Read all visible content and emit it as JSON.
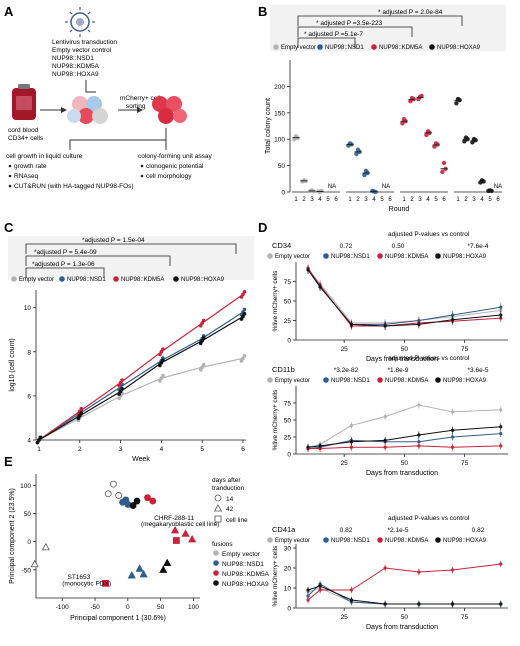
{
  "panel_letters": [
    "A",
    "B",
    "C",
    "D",
    "E"
  ],
  "colors": {
    "empty_vector": "#b3b3b3",
    "nsd1": "#2f5d8c",
    "kdm5a": "#c8233b",
    "hoxa9": "#111111",
    "box_fill": "#f2f2f2"
  },
  "panel_a": {
    "transduction_title": "Lentivirus transduction",
    "constructs": [
      "Empty vector control",
      "NUP98::NSD1",
      "NUP98::KDM5A",
      "NUP98::HOXA9"
    ],
    "source_label": [
      "cord blood",
      "CD34+ cells"
    ],
    "sorting_label": [
      "mCherry+ cell",
      "sorting"
    ],
    "liquid_title": "cell growth in liquid culture",
    "liquid_items": [
      "growth rate",
      "RNAseq",
      "CUT&RUN (with HA-tagged NUP98-FOs)"
    ],
    "cfu_title": "colony-forming unit assay",
    "cfu_items": [
      "clonogenic potential",
      "cell morphology"
    ]
  },
  "chart_data": [
    {
      "panel": "B",
      "type": "scatter",
      "ylabel": "Total colony count",
      "xlabel": "Round",
      "ylim": [
        0,
        250
      ],
      "yticks": [
        0,
        50,
        100,
        150,
        200
      ],
      "x_ticklabels": [
        "1",
        "2",
        "3",
        "4",
        "5",
        "6"
      ],
      "na_label": "NA",
      "na_rounds": {
        "Empty vector": [
          5,
          6
        ],
        "NUP98::NSD1": [
          5,
          6
        ],
        "NUP98::HOXA9": [
          6
        ]
      },
      "series": [
        {
          "name": "Empty vector",
          "rounds": [
            1,
            2,
            3,
            4
          ],
          "values": [
            [
              100,
              106,
              102
            ],
            [
              20,
              22,
              21
            ],
            [
              2,
              3,
              1
            ],
            [
              1,
              0,
              2
            ]
          ],
          "mean": [
            103,
            21,
            2,
            1
          ]
        },
        {
          "name": "NUP98::NSD1",
          "rounds": [
            1,
            2,
            3,
            4
          ],
          "values": [
            [
              88,
              92,
              90
            ],
            [
              72,
              80,
              76
            ],
            [
              32,
              40,
              36
            ],
            [
              2,
              1,
              0
            ]
          ],
          "mean": [
            90,
            76,
            36,
            1
          ]
        },
        {
          "name": "NUP98::KDM5A",
          "rounds": [
            1,
            2,
            3,
            4,
            5,
            6
          ],
          "values": [
            [
              130,
              138,
              134
            ],
            [
              172,
              178,
              176
            ],
            [
              176,
              180,
              182
            ],
            [
              108,
              115,
              112
            ],
            [
              86,
              92,
              90
            ],
            [
              38,
              55,
              44
            ]
          ],
          "mean": [
            134,
            175,
            179,
            112,
            89,
            44
          ]
        },
        {
          "name": "NUP98::HOXA9",
          "rounds": [
            1,
            2,
            3,
            4,
            5
          ],
          "values": [
            [
              168,
              176,
              174
            ],
            [
              96,
              103,
              100
            ],
            [
              94,
              100,
              98
            ],
            [
              18,
              22,
              20
            ],
            [
              2,
              3,
              2
            ]
          ],
          "mean": [
            173,
            100,
            97,
            20,
            2
          ]
        }
      ],
      "annotations": [
        "* adjusted P = 2.0e-84",
        "* adjusted P =3.5e-223",
        "* adjusted P =5.1e-7"
      ]
    },
    {
      "panel": "C",
      "type": "line",
      "ylabel": "log10 (cell count)",
      "xlabel": "Week",
      "x": [
        1,
        2,
        3,
        4,
        5,
        6
      ],
      "ylim": [
        4,
        10.8
      ],
      "yticks": [
        4,
        6,
        8,
        10
      ],
      "series": [
        {
          "name": "Empty vector",
          "values": [
            4.0,
            5.0,
            6.0,
            6.8,
            7.3,
            7.7
          ]
        },
        {
          "name": "NUP98::NSD1",
          "values": [
            4.0,
            5.2,
            6.4,
            7.6,
            8.6,
            9.8
          ]
        },
        {
          "name": "NUP98::KDM5A",
          "values": [
            4.0,
            5.3,
            6.6,
            8.0,
            9.3,
            10.6
          ]
        },
        {
          "name": "NUP98::HOXA9",
          "values": [
            4.0,
            5.1,
            6.2,
            7.5,
            8.5,
            9.6
          ]
        }
      ],
      "annotations": [
        "*adjusted P = 1.5e-04",
        "*adjusted P = 5.4e-09",
        "*adjusted P = 1.3e-06"
      ]
    },
    {
      "panel": "D1",
      "type": "line",
      "title": "CD34",
      "ylabel": "%live mCherry+ cells",
      "x": [
        10,
        15,
        28,
        42,
        56,
        70,
        90
      ],
      "ylim": [
        0,
        100
      ],
      "yticks": [
        0,
        25,
        50,
        75
      ],
      "pvalues": [
        "0.72",
        "0.50",
        "*7.6e-4"
      ],
      "pval_header": "adjusted P-values vs control",
      "series": [
        {
          "name": "Empty vector",
          "values": [
            90,
            72,
            22,
            22,
            25,
            30,
            38
          ]
        },
        {
          "name": "NUP98::NSD1",
          "values": [
            90,
            68,
            20,
            20,
            25,
            32,
            42
          ]
        },
        {
          "name": "NUP98::KDM5A",
          "values": [
            92,
            70,
            18,
            18,
            22,
            24,
            28
          ]
        },
        {
          "name": "NUP98::HOXA9",
          "values": [
            90,
            68,
            20,
            18,
            20,
            26,
            32
          ]
        }
      ]
    },
    {
      "panel": "D2",
      "type": "line",
      "title": "CD11b",
      "ylabel": "%live mCherry+ cells",
      "x": [
        10,
        15,
        28,
        42,
        56,
        70,
        90
      ],
      "ylim": [
        0,
        100
      ],
      "yticks": [
        0,
        25,
        50,
        75
      ],
      "pvalues": [
        "*3.2e-82",
        "*1.8e-9",
        "*3.6e-5"
      ],
      "pval_header": "adjusted P-values vs control",
      "series": [
        {
          "name": "Empty vector",
          "values": [
            10,
            14,
            42,
            55,
            72,
            62,
            65
          ]
        },
        {
          "name": "NUP98::NSD1",
          "values": [
            8,
            10,
            20,
            18,
            18,
            25,
            30
          ]
        },
        {
          "name": "NUP98::KDM5A",
          "values": [
            8,
            8,
            10,
            10,
            12,
            10,
            12
          ]
        },
        {
          "name": "NUP98::HOXA9",
          "values": [
            10,
            12,
            18,
            20,
            28,
            35,
            40
          ]
        }
      ]
    },
    {
      "panel": "D3",
      "type": "line",
      "title": "CD41a",
      "ylabel": "%live mCherry+ cells",
      "xlabel": "Days from transduction",
      "x": [
        10,
        15,
        28,
        42,
        56,
        70,
        90
      ],
      "ylim": [
        0,
        32
      ],
      "yticks": [
        0,
        10,
        20,
        30
      ],
      "xticks": [
        25,
        50,
        75
      ],
      "pvalues": [
        "0.82",
        "*2.1e-5",
        "0.82"
      ],
      "pval_header": "adjusted P-values vs control",
      "series": [
        {
          "name": "Empty vector",
          "values": [
            8,
            10,
            3,
            2,
            2,
            2,
            2
          ]
        },
        {
          "name": "NUP98::NSD1",
          "values": [
            6,
            12,
            3,
            2,
            2,
            2,
            2
          ]
        },
        {
          "name": "NUP98::KDM5A",
          "values": [
            4,
            9,
            9,
            20,
            18,
            19,
            22
          ]
        },
        {
          "name": "NUP98::HOXA9",
          "values": [
            9,
            11,
            4,
            2,
            2,
            2,
            2
          ]
        }
      ]
    },
    {
      "panel": "E",
      "type": "scatter",
      "xlabel": "Principal component 1 (30.6%)",
      "ylabel": "Principal component 2 (23.5%)",
      "xlim": [
        -140,
        110
      ],
      "ylim": [
        -100,
        120
      ],
      "xticks": [
        -100,
        -50,
        0,
        50,
        100
      ],
      "yticks": [
        -50,
        0,
        50,
        100
      ],
      "legend_days_title": [
        "days after",
        "tranduction"
      ],
      "legend_days": [
        "14",
        "42",
        "cell line"
      ],
      "legend_fusions_title": "fusions",
      "legend_fusions": [
        "Empty vector",
        "NUP98::NSD1",
        "NUP98::KDM5A",
        "NUP98::HOXA9"
      ],
      "labels": [
        "CHRF-288-11",
        "(megakaryoblastic cell line)",
        "ST1653",
        "(monocytic PDX)"
      ],
      "points": [
        {
          "x": -22,
          "y": 102,
          "shape": "circle",
          "group": "Empty vector"
        },
        {
          "x": -30,
          "y": 85,
          "shape": "circle",
          "group": "Empty vector"
        },
        {
          "x": -14,
          "y": 82,
          "shape": "circle",
          "group": "Empty vector"
        },
        {
          "x": -125,
          "y": -10,
          "shape": "triangle",
          "group": "Empty vector"
        },
        {
          "x": -142,
          "y": -40,
          "shape": "triangle",
          "group": "Empty vector"
        },
        {
          "x": -8,
          "y": 70,
          "shape": "circle",
          "group": "NUP98::NSD1"
        },
        {
          "x": 0,
          "y": 66,
          "shape": "circle",
          "group": "NUP98::NSD1"
        },
        {
          "x": -3,
          "y": 74,
          "shape": "circle",
          "group": "NUP98::NSD1"
        },
        {
          "x": 6,
          "y": -60,
          "shape": "triangle",
          "group": "NUP98::NSD1"
        },
        {
          "x": 18,
          "y": -48,
          "shape": "triangle",
          "group": "NUP98::NSD1"
        },
        {
          "x": 24,
          "y": -58,
          "shape": "triangle",
          "group": "NUP98::NSD1"
        },
        {
          "x": 30,
          "y": 78,
          "shape": "circle",
          "group": "NUP98::KDM5A"
        },
        {
          "x": 38,
          "y": 72,
          "shape": "circle",
          "group": "NUP98::KDM5A"
        },
        {
          "x": 88,
          "y": 14,
          "shape": "triangle",
          "group": "NUP98::KDM5A"
        },
        {
          "x": 98,
          "y": 4,
          "shape": "triangle",
          "group": "NUP98::KDM5A"
        },
        {
          "x": 72,
          "y": 20,
          "shape": "triangle",
          "group": "NUP98::KDM5A"
        },
        {
          "x": 8,
          "y": 64,
          "shape": "circle",
          "group": "NUP98::HOXA9"
        },
        {
          "x": 14,
          "y": 72,
          "shape": "circle",
          "group": "NUP98::HOXA9"
        },
        {
          "x": 54,
          "y": -50,
          "shape": "triangle",
          "group": "NUP98::HOXA9"
        },
        {
          "x": 60,
          "y": -38,
          "shape": "triangle",
          "group": "NUP98::HOXA9"
        },
        {
          "x": 74,
          "y": 2,
          "shape": "square",
          "group": "NUP98::KDM5A"
        },
        {
          "x": -34,
          "y": -74,
          "shape": "square",
          "group": "NUP98::KDM5A"
        }
      ]
    }
  ],
  "legends": {
    "b": [
      "Empty vector",
      "NUP98::NSD1",
      "NUP98::KDM5A",
      "NUP98::HOXA9"
    ],
    "c": [
      "Empty vector",
      "NUP98::NSD1",
      "NUP98::KDM5A",
      "NUP98::HOXA9"
    ],
    "d": [
      "Empty vector",
      "NUP98::NSD1",
      "NUP98::KDM5A",
      "NUP98::HOXA9"
    ]
  }
}
